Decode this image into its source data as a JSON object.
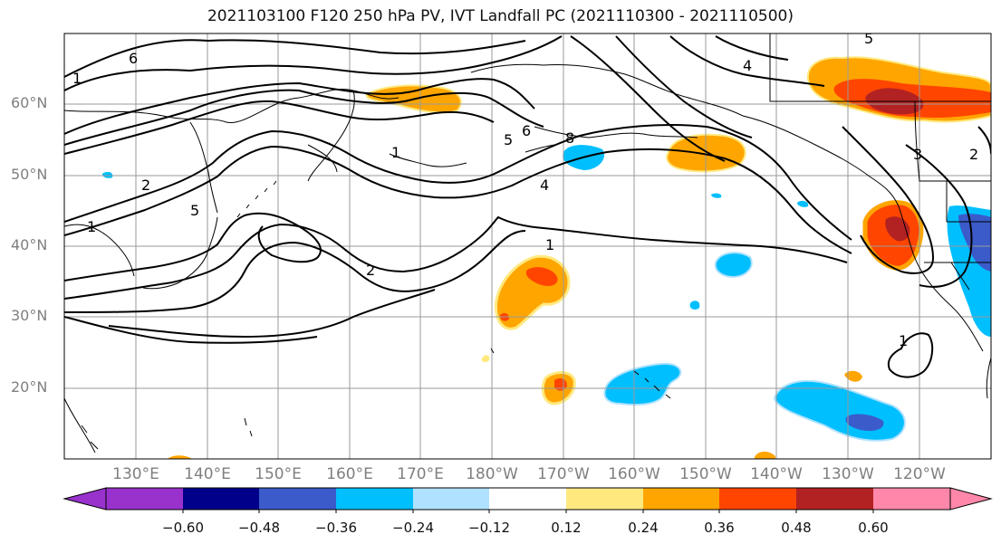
{
  "title": "2021103100 F120 250 hPa PV, IVT Landfall PC (2021110300 - 2021110500)",
  "lat_labels": [
    "20°N",
    "30°N",
    "40°N",
    "50°N",
    "60°N"
  ],
  "lon_labels": [
    "130°E",
    "140°E",
    "150°E",
    "160°E",
    "170°E",
    "180°W",
    "170°W",
    "160°W",
    "150°W",
    "140°W",
    "130°W",
    "120°W"
  ],
  "colorbar": {
    "labels": [
      "−0.60",
      "−0.48",
      "−0.36",
      "−0.24",
      "−0.12",
      "0.12",
      "0.24",
      "0.36",
      "0.48",
      "0.60"
    ],
    "colors": [
      "#9932cc",
      "#00008b",
      "#3a5bc9",
      "#00bfff",
      "#b0e2ff",
      "#ffffff",
      "#ffe97f",
      "#ffa500",
      "#ff4500",
      "#b22222",
      "#ff88aa"
    ]
  },
  "contour_labels": [
    "1",
    "2",
    "4",
    "5",
    "6",
    "8",
    "1",
    "2",
    "5",
    "1",
    "4",
    "3",
    "5",
    "6",
    "1",
    "2",
    "1"
  ],
  "shading_colors": {
    "light_blue": "#b0e2ff",
    "blue": "#00bfff",
    "dark_blue": "#3a5bc9",
    "yellow": "#ffe97f",
    "orange": "#ffa500",
    "red": "#ff4500",
    "dark_red": "#b22222"
  }
}
